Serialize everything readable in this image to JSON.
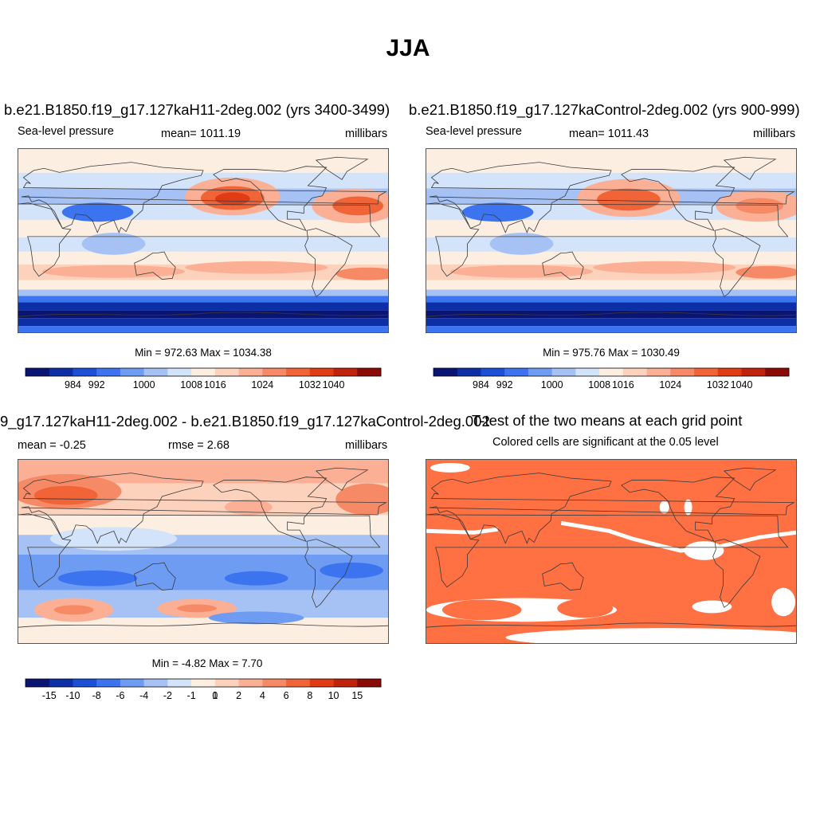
{
  "main_title": "JJA",
  "colors": {
    "map_outline": "#3a3a3a",
    "significant": "#ff7043",
    "palette": [
      "#0a1473",
      "#0d2fa6",
      "#1a4fd6",
      "#3b74ee",
      "#6f9cf3",
      "#a6c2f5",
      "#d3e3fa",
      "#fdeee2",
      "#fdd2bc",
      "#fbb095",
      "#f78a66",
      "#f06438",
      "#e13b16",
      "#c0230c",
      "#8a0b05"
    ]
  },
  "chart_data": [
    {
      "type": "heatmap",
      "id": "test_case",
      "title": "b.e21.B1850.f19_g17.127kaH11-2deg.002 (yrs 3400-3499)",
      "left_label": "Sea-level pressure",
      "center_label": "mean= 1011.19",
      "right_label": "millibars",
      "minmax_label": "Min = 972.63 Max = 1034.38",
      "min": 972.63,
      "max": 1034.38,
      "colorbar_ticks": [
        "984",
        "992",
        "1000",
        "1008",
        "1016",
        "1024",
        "1032",
        "1040"
      ]
    },
    {
      "type": "heatmap",
      "id": "control_case",
      "title": "b.e21.B1850.f19_g17.127kaControl-2deg.002 (yrs 900-999)",
      "left_label": "Sea-level pressure",
      "center_label": "mean= 1011.43",
      "right_label": "millibars",
      "minmax_label": "Min = 975.76 Max = 1030.49",
      "min": 975.76,
      "max": 1030.49,
      "colorbar_ticks": [
        "984",
        "992",
        "1000",
        "1008",
        "1016",
        "1024",
        "1032",
        "1040"
      ]
    },
    {
      "type": "heatmap",
      "id": "difference",
      "title": "9_g17.127kaH11-2deg.002 - b.e21.B1850.f19_g17.127kaControl-2deg.002",
      "left_label": "mean =  -0.25",
      "center_label": "rmse =   2.68",
      "right_label": "millibars",
      "minmax_label": "Min =  -4.82 Max =   7.70",
      "min": -4.82,
      "max": 7.7,
      "colorbar_ticks": [
        "-15",
        "-10",
        "-8",
        "-6",
        "-4",
        "-2",
        "-1",
        "0",
        "1",
        "2",
        "4",
        "6",
        "8",
        "10",
        "15"
      ]
    },
    {
      "type": "heatmap",
      "id": "ttest",
      "title": "T-test of the two means at each grid point",
      "subtitle": "Colored cells are significant at the 0.05 level"
    }
  ]
}
